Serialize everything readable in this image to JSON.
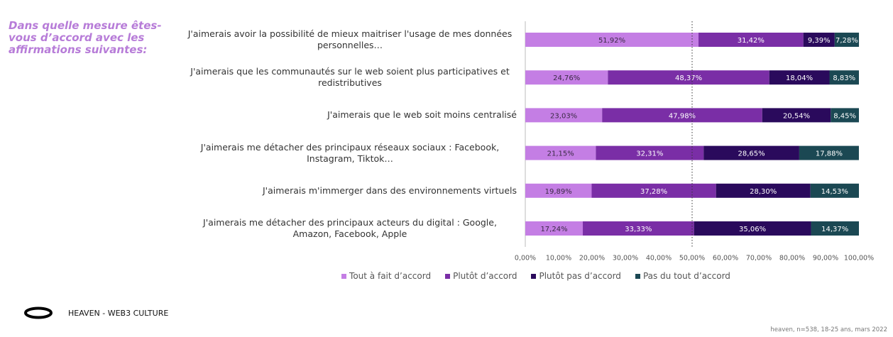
{
  "chart_data": {
    "type": "stacked_bar_horizontal",
    "title": "Dans quelle mesure êtes-vous d’accord avec les affirmations suivantes:",
    "categories": [
      "J'aimerais avoir la possibilité de mieux maitriser l'usage de mes données personnelles…",
      "J'aimerais que les communautés sur le web soient plus participatives et redistributives",
      "J'aimerais que le web soit moins centralisé",
      "J'aimerais me détacher des principaux réseaux sociaux : Facebook, Instagram, Tiktok…",
      "J'aimerais m'immerger dans des environnements virtuels",
      "J'aimerais me détacher des principaux acteurs du digital : Google, Amazon, Facebook, Apple"
    ],
    "series": [
      {
        "name": "Tout à fait d’accord",
        "color": "#c47ee4",
        "values": [
          51.92,
          24.76,
          23.03,
          21.15,
          19.89,
          17.24
        ],
        "value_labels": [
          "51,92%",
          "24,76%",
          "23,03%",
          "21,15%",
          "19,89%",
          "17,24%"
        ]
      },
      {
        "name": "Plutôt d’accord",
        "color": "#7a2ea6",
        "values": [
          31.42,
          48.37,
          47.98,
          32.31,
          37.28,
          33.33
        ],
        "value_labels": [
          "31,42%",
          "48,37%",
          "47,98%",
          "32,31%",
          "37,28%",
          "33,33%"
        ]
      },
      {
        "name": "Plutôt pas d’accord",
        "color": "#2a0a5c",
        "values": [
          9.39,
          18.04,
          20.54,
          28.65,
          28.3,
          35.06
        ],
        "value_labels": [
          "9,39%",
          "18,04%",
          "20,54%",
          "28,65%",
          "28,30%",
          "35,06%"
        ]
      },
      {
        "name": "Pas du tout d’accord",
        "color": "#1b4853",
        "values": [
          7.28,
          8.83,
          8.45,
          17.88,
          14.53,
          14.37
        ],
        "value_labels": [
          "7,28%",
          "8,83%",
          "8,45%",
          "17,88%",
          "14,53%",
          "14,37%"
        ]
      }
    ],
    "xlim": [
      0,
      100
    ],
    "xticks": [
      {
        "value": 0,
        "label": "0,00%"
      },
      {
        "value": 10,
        "label": "10,00%"
      },
      {
        "value": 20,
        "label": "20,00%"
      },
      {
        "value": 30,
        "label": "30,00%"
      },
      {
        "value": 40,
        "label": "40,00%"
      },
      {
        "value": 50,
        "label": "50,00%"
      },
      {
        "value": 60,
        "label": "60,00%"
      },
      {
        "value": 70,
        "label": "70,00%"
      },
      {
        "value": 80,
        "label": "80,00%"
      },
      {
        "value": 90,
        "label": "90,00%"
      },
      {
        "value": 100,
        "label": "100,00%"
      }
    ],
    "reference_line": 50,
    "legend": "bottom",
    "brand": "HEAVEN - WEB3 CULTURE",
    "source": "heaven, n=538, 18-25 ans, mars 2022"
  }
}
